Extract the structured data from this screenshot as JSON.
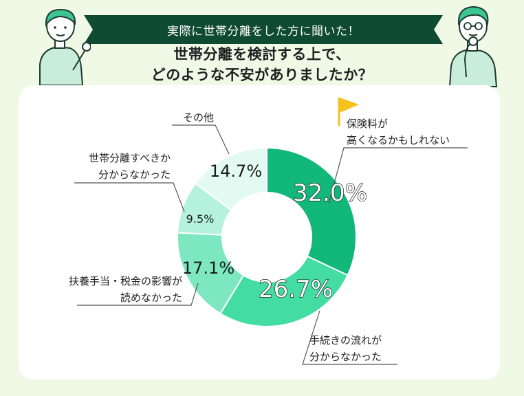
{
  "banner": {
    "text": "実際に世帯分離をした方に聞いた！"
  },
  "heading": {
    "line1": "世帯分離を検討する上で、",
    "line2": "どのような不安がありましたか？"
  },
  "colors": {
    "background": "#eff9e6",
    "banner": "#0f4a33",
    "flag": "#f3c21b",
    "leader": "#555555"
  },
  "chart_data": {
    "type": "pie",
    "donut": true,
    "unit": "%",
    "slices": [
      {
        "label_lines": [
          "保険料が",
          "高くなるかもしれない"
        ],
        "value": 32.0,
        "display": "32.0%",
        "color": "#12b77a"
      },
      {
        "label_lines": [
          "手続きの流れが",
          "分からなかった"
        ],
        "value": 26.7,
        "display": "26.7%",
        "color": "#43dca3"
      },
      {
        "label_lines": [
          "扶養手当・税金の影響が",
          "読めなかった"
        ],
        "value": 17.1,
        "display": "17.1%",
        "color": "#7ce7c1"
      },
      {
        "label_lines": [
          "世帯分離すべきか",
          "分からなかった"
        ],
        "value": 9.5,
        "display": "9.5%",
        "color": "#b5f2dd"
      },
      {
        "label_lines": [
          "その他"
        ],
        "value": 14.7,
        "display": "14.7%",
        "color": "#e2faf1"
      }
    ],
    "highlight": {
      "index": 0,
      "marker": "flag-icon"
    }
  }
}
